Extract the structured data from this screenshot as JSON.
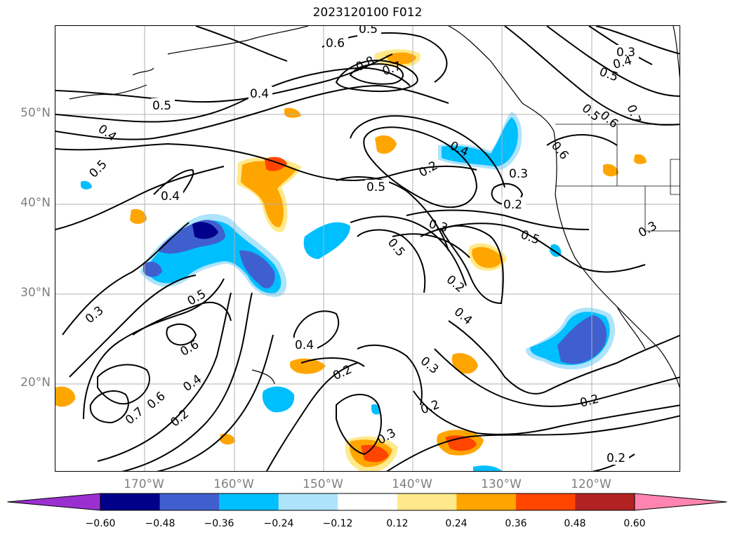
{
  "title": "2023120100 F012",
  "lat_labels": [
    "50°N",
    "40°N",
    "30°N",
    "20°N"
  ],
  "lon_labels": [
    "170°W",
    "160°W",
    "150°W",
    "140°W",
    "130°W",
    "120°W"
  ],
  "colorbar": {
    "ticks": [
      "−0.60",
      "−0.48",
      "−0.36",
      "−0.24",
      "−0.12",
      "0.12",
      "0.24",
      "0.36",
      "0.48",
      "0.60"
    ],
    "colors": [
      "#9b30d0",
      "#00008b",
      "#3f5fcf",
      "#00bfff",
      "#aee4fb",
      "#ffffff",
      "#ffe98a",
      "#ffa500",
      "#ff4500",
      "#b22222",
      "#ff85b0"
    ]
  },
  "contour_labels": [
    "0.5",
    "0.6",
    "0.8",
    "0.7",
    "0.4",
    "0.5",
    "0.4",
    "0.5",
    "0.4",
    "0.3",
    "0.4",
    "0.5",
    "0.5",
    "0.6",
    "0.7",
    "0.6",
    "0.4",
    "0.2",
    "0.3",
    "0.5",
    "0.2",
    "0.3",
    "0.5",
    "0.3",
    "0.2",
    "0.4",
    "0.3",
    "0.5",
    "0.6",
    "0.5",
    "0.4",
    "0.2",
    "0.4",
    "0.2",
    "0.3",
    "0.2",
    "0.3",
    "0.2",
    "0.2",
    "0.7",
    "0.6"
  ]
}
